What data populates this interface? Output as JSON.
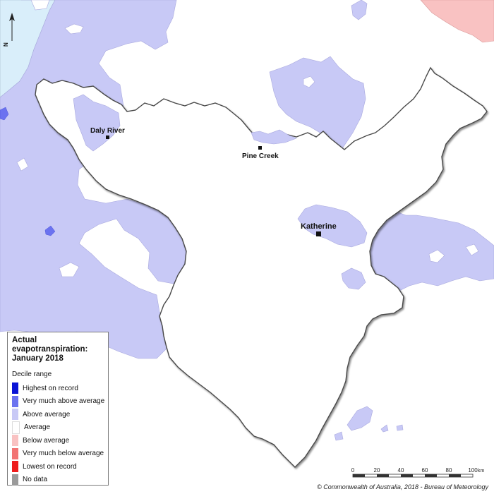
{
  "map": {
    "title_line1": "Actual",
    "title_line2": "evapotranspiration:",
    "title_line3": "January 2018",
    "north_label": "N",
    "towns": [
      {
        "name": "Daly River"
      },
      {
        "name": "Pine Creek"
      },
      {
        "name": "Katherine"
      }
    ]
  },
  "legend": {
    "subtitle": "Decile range",
    "items": [
      {
        "label": "Highest on record",
        "color": "#0a14d6"
      },
      {
        "label": "Very much above average",
        "color": "#6b72f0"
      },
      {
        "label": "Above average",
        "color": "#c8c9f6"
      },
      {
        "label": "Average",
        "color": "#ffffff"
      },
      {
        "label": "Below average",
        "color": "#f9c2c2"
      },
      {
        "label": "Very much below average",
        "color": "#f27474"
      },
      {
        "label": "Lowest on record",
        "color": "#ee1c1c"
      },
      {
        "label": "No data",
        "color": "#9a9a9a"
      }
    ]
  },
  "scale": {
    "ticks": [
      "0",
      "20",
      "40",
      "60",
      "80",
      "100"
    ],
    "unit": "km"
  },
  "footer": {
    "copyright": "© Commonwealth of Australia, 2018 - Bureau of Meteorology"
  },
  "colors": {
    "above": "#c8c9f6",
    "very_above": "#6b72f0",
    "below": "#f9c2c2",
    "water": "#d9eefa",
    "boundary": "#4a4a4a"
  }
}
